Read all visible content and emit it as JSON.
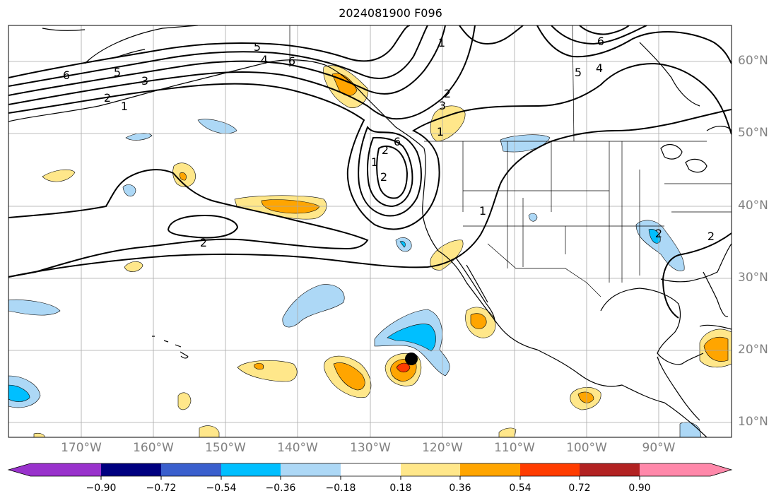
{
  "title": "2024081900 F096",
  "longitude_labels": [
    "170°W",
    "160°W",
    "150°W",
    "140°W",
    "130°W",
    "120°W",
    "110°W",
    "100°W",
    "90°W"
  ],
  "latitude_labels": [
    "60°N",
    "50°N",
    "40°N",
    "30°N",
    "20°N",
    "10°N"
  ],
  "contour_labels": [
    "6",
    "5",
    "3",
    "2",
    "1",
    "5",
    "4",
    "6",
    "1",
    "2",
    "3",
    "1",
    "6",
    "5",
    "4",
    "2",
    "1",
    "2",
    "6",
    "2",
    "2",
    "2",
    "1"
  ],
  "colorbar": {
    "ticks": [
      "−0.90",
      "−0.72",
      "−0.54",
      "−0.36",
      "−0.18",
      "0.18",
      "0.36",
      "0.54",
      "0.72",
      "0.90"
    ],
    "colors": [
      "#9932cc",
      "#000080",
      "#3a5fcd",
      "#00bfff",
      "#add8f6",
      "#ffffff",
      "#ffe78a",
      "#ffa500",
      "#ff3c00",
      "#b22222",
      "#ff88aa"
    ]
  },
  "marker": {
    "lon": -124.3,
    "lat": 18.8,
    "color": "#000000"
  }
}
